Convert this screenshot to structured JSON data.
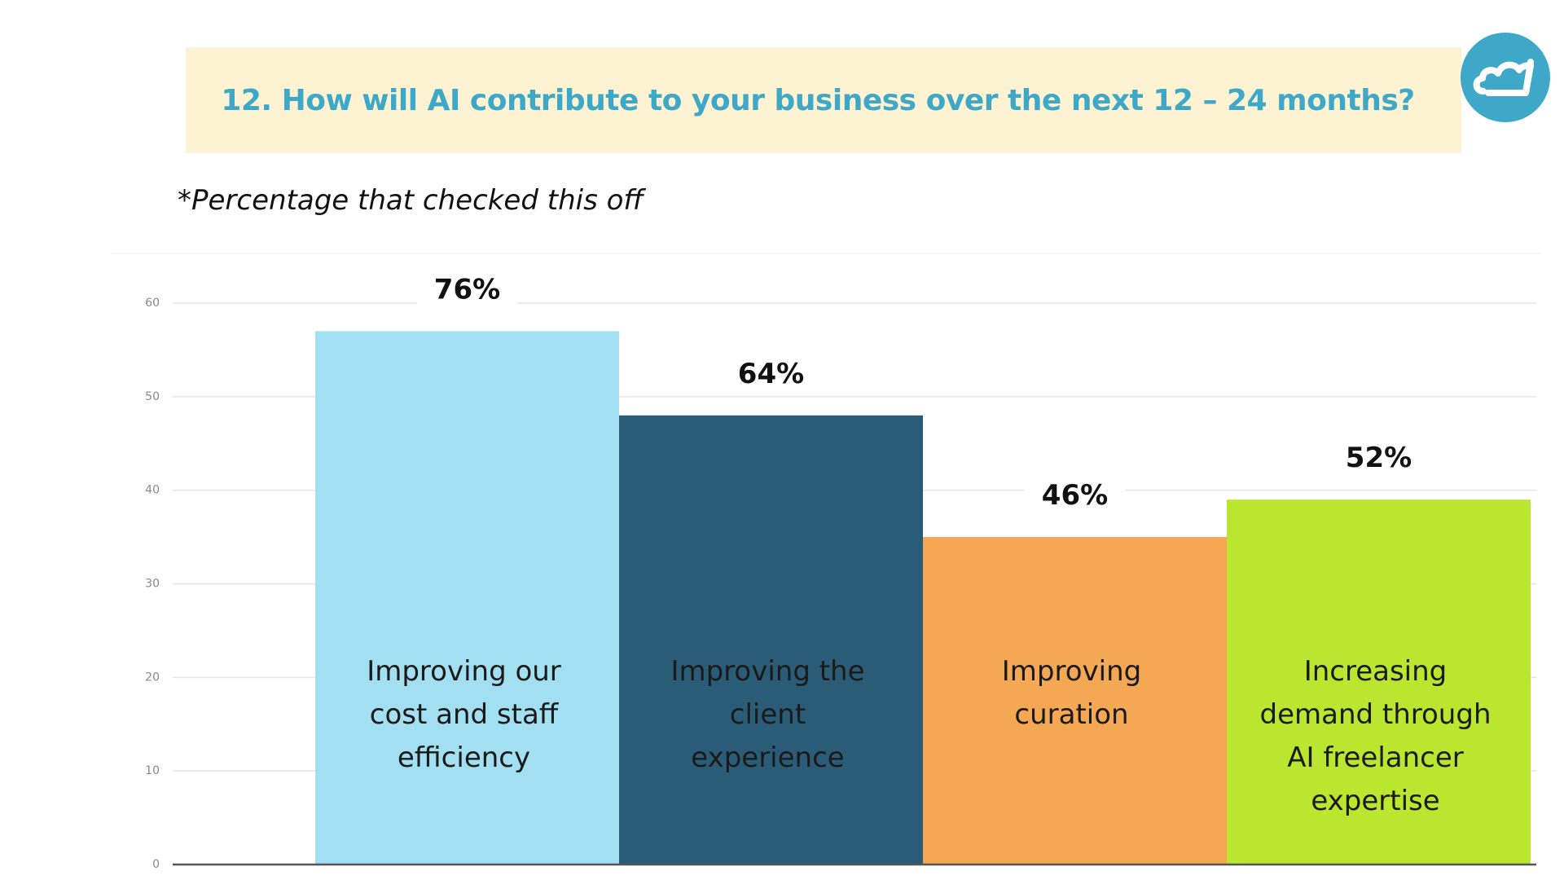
{
  "header": {
    "title": "12. How will AI contribute to your business over the next 12 – 24 months?",
    "logo_icon": "cloud-icon",
    "logo_color": "#3fa8c9",
    "title_color": "#3ea8c8",
    "banner_color": "#fdf3d2"
  },
  "subtitle": "*Percentage that checked this off",
  "chart_data": {
    "type": "bar",
    "title": "12. How will AI contribute to your business over the next 12 – 24 months?",
    "subtitle": "*Percentage that checked this off",
    "categories": [
      "Improving our cost and staff efficiency",
      "Improving the client experience",
      "Improving curation",
      "Increasing demand through AI freelancer expertise"
    ],
    "category_lines": [
      [
        "Improving our",
        "cost and staff",
        "efficiency"
      ],
      [
        "Improving the",
        "client",
        "experience"
      ],
      [
        "Improving",
        "curation"
      ],
      [
        "Increasing",
        "demand through",
        "AI freelancer",
        "expertise"
      ]
    ],
    "values": [
      57,
      48,
      35,
      39
    ],
    "data_labels": [
      "76%",
      "64%",
      "46%",
      "52%"
    ],
    "colors": [
      "#a2dff0",
      "#2a5c78",
      "#f5a853",
      "#bae630"
    ],
    "label_text_colors": [
      "#1a1a1a",
      "#1a1a1a",
      "#1a1a1a",
      "#1a1a1a"
    ],
    "yticks": [
      0,
      10,
      20,
      30,
      40,
      50,
      60
    ],
    "ylim": [
      0,
      60
    ],
    "grid": true,
    "legend": "none",
    "xlabel": "",
    "ylabel": ""
  }
}
